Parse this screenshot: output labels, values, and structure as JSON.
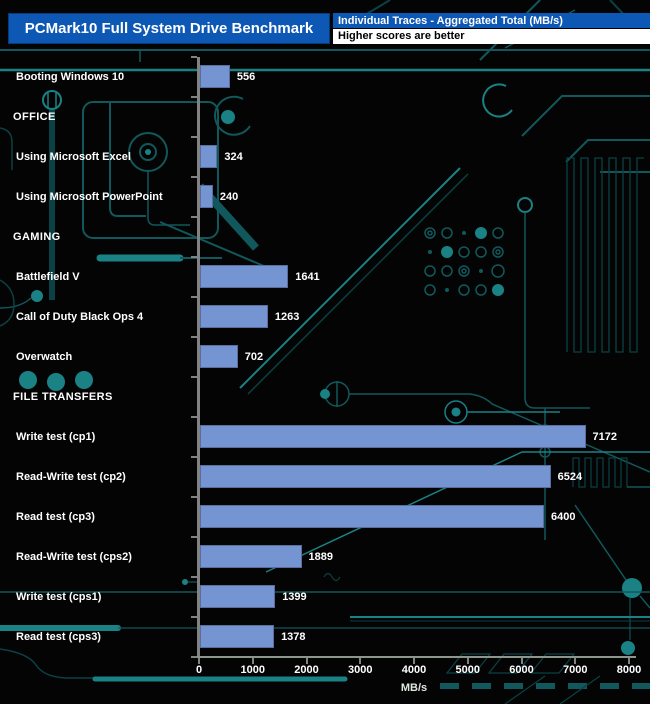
{
  "title": "PCMark10 Full System Drive Benchmark",
  "legend": {
    "line1": "Individual Traces - Aggregated Total (MB/s)",
    "line2": "Higher scores are better"
  },
  "chart_data": {
    "type": "bar",
    "orientation": "horizontal",
    "title": "PCMark10 Full System Drive Benchmark",
    "subtitle": "Individual Traces - Aggregated Total (MB/s)",
    "note": "Higher scores are better",
    "xlabel": "MB/s",
    "xlim": [
      0,
      8000
    ],
    "x_ticks": [
      0,
      1000,
      2000,
      3000,
      4000,
      5000,
      6000,
      7000,
      8000
    ],
    "grid": false,
    "rows": [
      {
        "label": "Booting Windows 10",
        "value": 556
      },
      {
        "label": "OFFICE",
        "header": true
      },
      {
        "label": "Using Microsoft Excel",
        "value": 324
      },
      {
        "label": "Using Microsoft PowerPoint",
        "value": 240
      },
      {
        "label": "GAMING",
        "header": true
      },
      {
        "label": "Battlefield V",
        "value": 1641
      },
      {
        "label": "Call of Duty Black Ops 4",
        "value": 1263
      },
      {
        "label": "Overwatch",
        "value": 702
      },
      {
        "label": "FILE TRANSFERS",
        "header": true
      },
      {
        "label": "Write test (cp1)",
        "value": 7172
      },
      {
        "label": "Read-Write test (cp2)",
        "value": 6524
      },
      {
        "label": "Read test (cp3)",
        "value": 6400
      },
      {
        "label": "Read-Write test (cps2)",
        "value": 1889
      },
      {
        "label": "Write test (cps1)",
        "value": 1399
      },
      {
        "label": "Read test (cps3)",
        "value": 1378
      }
    ]
  },
  "colors": {
    "background": "#040404",
    "header_bg": "#0d57b5",
    "header_text": "#ffffff",
    "note_bg": "#ffffff",
    "note_text": "#000000",
    "bar_fill": "#7494d2",
    "bar_border": "#5a6d9e",
    "axis": "#828282",
    "label_text": "#ffffff",
    "trace_dim": "#0b4145",
    "trace_mid": "#11585c",
    "trace_bright": "#1a8185"
  }
}
